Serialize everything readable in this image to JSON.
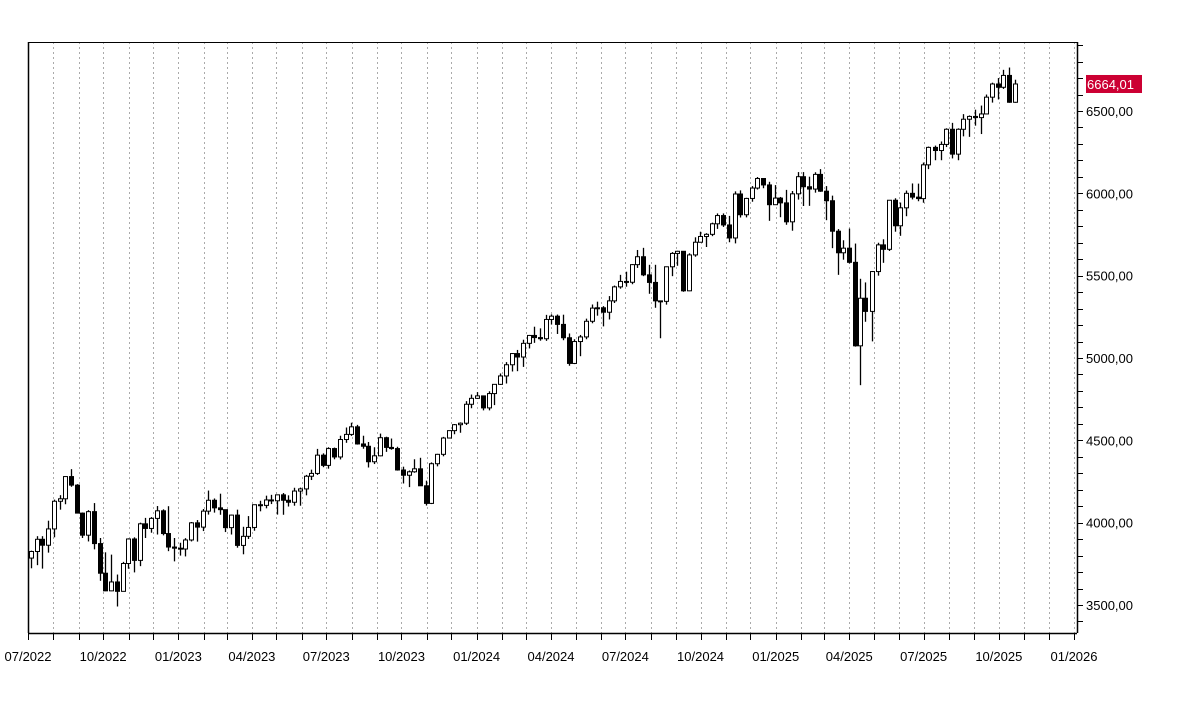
{
  "chart_data": {
    "type": "candlestick",
    "title": "",
    "xlabel": "",
    "ylabel": "",
    "x_range": [
      "2022-07-01",
      "2026-01-01"
    ],
    "ylim": [
      3330,
      6919
    ],
    "x_ticks": [
      "07/2022",
      "10/2022",
      "01/2023",
      "04/2023",
      "07/2023",
      "10/2023",
      "01/2024",
      "04/2024",
      "07/2024",
      "10/2024",
      "01/2025",
      "04/2025",
      "07/2025",
      "10/2025",
      "01/2026"
    ],
    "x_tick_dates": [
      "2022-07-01",
      "2022-10-01",
      "2023-01-01",
      "2023-04-01",
      "2023-07-01",
      "2023-10-01",
      "2024-01-01",
      "2024-04-01",
      "2024-07-01",
      "2024-10-01",
      "2025-01-01",
      "2025-04-01",
      "2025-07-01",
      "2025-10-01",
      "2026-01-01"
    ],
    "y_ticks": [
      3500,
      4000,
      4500,
      5000,
      5500,
      6000,
      6500
    ],
    "y_tick_labels": [
      "3500,00",
      "4000,00",
      "4500,00",
      "5000,00",
      "5500,00",
      "6000,00",
      "6500,00"
    ],
    "y_minor_step": 100,
    "grid": {
      "vertical": "monthly dotted",
      "horizontal": false
    },
    "last_price": {
      "label": "6664,01",
      "value": 6664.01,
      "color": "#cc0033"
    },
    "colors": {
      "up": "#ffffff",
      "down": "#000000",
      "outline": "#000000"
    },
    "candle_fields": [
      "date",
      "open",
      "high",
      "low",
      "close"
    ],
    "candles": [
      [
        "2022-07-01",
        3785,
        3830,
        3723,
        3825
      ],
      [
        "2022-07-08",
        3825,
        3918,
        3742,
        3899
      ],
      [
        "2022-07-15",
        3899,
        3918,
        3721,
        3863
      ],
      [
        "2022-07-22",
        3863,
        4012,
        3818,
        3962
      ],
      [
        "2022-07-29",
        3962,
        4140,
        3911,
        4130
      ],
      [
        "2022-08-05",
        4130,
        4167,
        4079,
        4145
      ],
      [
        "2022-08-12",
        4145,
        4280,
        4112,
        4280
      ],
      [
        "2022-08-19",
        4280,
        4325,
        4218,
        4228
      ],
      [
        "2022-08-26",
        4228,
        4234,
        4057,
        4058
      ],
      [
        "2022-09-02",
        4058,
        4062,
        3907,
        3924
      ],
      [
        "2022-09-09",
        3924,
        4076,
        3886,
        4067
      ],
      [
        "2022-09-16",
        4067,
        4119,
        3838,
        3873
      ],
      [
        "2022-09-23",
        3873,
        3907,
        3647,
        3693
      ],
      [
        "2022-09-30",
        3693,
        3820,
        3584,
        3586
      ],
      [
        "2022-10-07",
        3586,
        3806,
        3584,
        3640
      ],
      [
        "2022-10-14",
        3640,
        3685,
        3491,
        3583
      ],
      [
        "2022-10-21",
        3583,
        3762,
        3582,
        3752
      ],
      [
        "2022-10-28",
        3752,
        3905,
        3720,
        3901
      ],
      [
        "2022-11-04",
        3901,
        3911,
        3698,
        3771
      ],
      [
        "2022-11-11",
        3771,
        4000,
        3736,
        3993
      ],
      [
        "2022-11-18",
        3993,
        4029,
        3907,
        3965
      ],
      [
        "2022-11-25",
        3965,
        4034,
        3939,
        4026
      ],
      [
        "2022-12-02",
        4026,
        4101,
        3928,
        4072
      ],
      [
        "2022-12-09",
        4072,
        4081,
        3923,
        3934
      ],
      [
        "2022-12-16",
        3934,
        4100,
        3827,
        3852
      ],
      [
        "2022-12-23",
        3852,
        3907,
        3765,
        3845
      ],
      [
        "2022-12-30",
        3845,
        3878,
        3800,
        3840
      ],
      [
        "2023-01-06",
        3840,
        3906,
        3795,
        3895
      ],
      [
        "2023-01-13",
        3895,
        4004,
        3886,
        3999
      ],
      [
        "2023-01-20",
        3999,
        4016,
        3885,
        3973
      ],
      [
        "2023-01-27",
        3973,
        4083,
        3949,
        4070
      ],
      [
        "2023-02-03",
        4070,
        4195,
        4049,
        4136
      ],
      [
        "2023-02-10",
        4136,
        4147,
        4061,
        4090
      ],
      [
        "2023-02-17",
        4090,
        4176,
        4048,
        4079
      ],
      [
        "2023-02-24",
        4079,
        4080,
        3943,
        3970
      ],
      [
        "2023-03-03",
        3970,
        4049,
        3928,
        4046
      ],
      [
        "2023-03-10",
        4046,
        4079,
        3848,
        3862
      ],
      [
        "2023-03-17",
        3862,
        3975,
        3808,
        3917
      ],
      [
        "2023-03-24",
        3917,
        4040,
        3901,
        3971
      ],
      [
        "2023-03-31",
        3971,
        4110,
        3951,
        4109
      ],
      [
        "2023-04-07",
        4109,
        4133,
        4069,
        4105
      ],
      [
        "2023-04-14",
        4105,
        4164,
        4087,
        4138
      ],
      [
        "2023-04-21",
        4138,
        4169,
        4113,
        4133
      ],
      [
        "2023-04-28",
        4133,
        4170,
        4049,
        4169
      ],
      [
        "2023-05-05",
        4169,
        4180,
        4048,
        4136
      ],
      [
        "2023-05-12",
        4136,
        4166,
        4098,
        4124
      ],
      [
        "2023-05-19",
        4124,
        4212,
        4103,
        4192
      ],
      [
        "2023-05-26",
        4192,
        4213,
        4103,
        4205
      ],
      [
        "2023-06-02",
        4205,
        4290,
        4166,
        4282
      ],
      [
        "2023-06-09",
        4282,
        4322,
        4259,
        4299
      ],
      [
        "2023-06-16",
        4299,
        4448,
        4290,
        4410
      ],
      [
        "2023-06-23",
        4410,
        4421,
        4337,
        4348
      ],
      [
        "2023-06-30",
        4348,
        4458,
        4328,
        4450
      ],
      [
        "2023-07-07",
        4450,
        4456,
        4385,
        4399
      ],
      [
        "2023-07-14",
        4399,
        4528,
        4384,
        4505
      ],
      [
        "2023-07-21",
        4505,
        4578,
        4485,
        4536
      ],
      [
        "2023-07-28",
        4536,
        4607,
        4527,
        4582
      ],
      [
        "2023-08-04",
        4582,
        4594,
        4474,
        4478
      ],
      [
        "2023-08-11",
        4478,
        4528,
        4449,
        4464
      ],
      [
        "2023-08-18",
        4464,
        4490,
        4335,
        4370
      ],
      [
        "2023-08-25",
        4370,
        4458,
        4356,
        4406
      ],
      [
        "2023-09-01",
        4406,
        4541,
        4403,
        4516
      ],
      [
        "2023-09-08",
        4516,
        4522,
        4430,
        4457
      ],
      [
        "2023-09-15",
        4457,
        4511,
        4443,
        4450
      ],
      [
        "2023-09-22",
        4450,
        4461,
        4316,
        4320
      ],
      [
        "2023-09-29",
        4320,
        4340,
        4238,
        4288
      ],
      [
        "2023-10-06",
        4288,
        4317,
        4216,
        4309
      ],
      [
        "2023-10-13",
        4309,
        4385,
        4303,
        4327
      ],
      [
        "2023-10-20",
        4327,
        4394,
        4223,
        4224
      ],
      [
        "2023-10-27",
        4224,
        4255,
        4104,
        4117
      ],
      [
        "2023-11-03",
        4117,
        4366,
        4113,
        4358
      ],
      [
        "2023-11-10",
        4358,
        4418,
        4342,
        4415
      ],
      [
        "2023-11-17",
        4415,
        4521,
        4403,
        4514
      ],
      [
        "2023-11-24",
        4514,
        4560,
        4511,
        4559
      ],
      [
        "2023-12-01",
        4559,
        4599,
        4537,
        4595
      ],
      [
        "2023-12-08",
        4595,
        4609,
        4546,
        4604
      ],
      [
        "2023-12-15",
        4604,
        4738,
        4593,
        4719
      ],
      [
        "2023-12-22",
        4719,
        4778,
        4695,
        4755
      ],
      [
        "2023-12-29",
        4755,
        4793,
        4751,
        4770
      ],
      [
        "2024-01-05",
        4770,
        4772,
        4682,
        4697
      ],
      [
        "2024-01-12",
        4697,
        4798,
        4682,
        4784
      ],
      [
        "2024-01-19",
        4784,
        4842,
        4714,
        4840
      ],
      [
        "2024-01-26",
        4840,
        4906,
        4837,
        4891
      ],
      [
        "2024-02-02",
        4891,
        4975,
        4845,
        4959
      ],
      [
        "2024-02-09",
        4959,
        5030,
        4918,
        5027
      ],
      [
        "2024-02-16",
        5027,
        5049,
        4920,
        5006
      ],
      [
        "2024-02-23",
        5006,
        5111,
        4946,
        5089
      ],
      [
        "2024-03-01",
        5089,
        5140,
        5058,
        5137
      ],
      [
        "2024-03-08",
        5137,
        5190,
        5092,
        5124
      ],
      [
        "2024-03-15",
        5124,
        5180,
        5105,
        5117
      ],
      [
        "2024-03-22",
        5117,
        5262,
        5104,
        5234
      ],
      [
        "2024-03-28",
        5234,
        5265,
        5203,
        5254
      ],
      [
        "2024-04-05",
        5254,
        5264,
        5146,
        5204
      ],
      [
        "2024-04-12",
        5204,
        5263,
        5108,
        5123
      ],
      [
        "2024-04-19",
        5123,
        5149,
        4953,
        4967
      ],
      [
        "2024-04-26",
        4967,
        5114,
        4963,
        5100
      ],
      [
        "2024-05-03",
        5100,
        5140,
        5011,
        5128
      ],
      [
        "2024-05-10",
        5128,
        5239,
        5114,
        5223
      ],
      [
        "2024-05-17",
        5223,
        5325,
        5211,
        5303
      ],
      [
        "2024-05-24",
        5303,
        5342,
        5257,
        5305
      ],
      [
        "2024-05-31",
        5305,
        5315,
        5192,
        5278
      ],
      [
        "2024-06-07",
        5278,
        5376,
        5234,
        5347
      ],
      [
        "2024-06-14",
        5347,
        5440,
        5334,
        5432
      ],
      [
        "2024-06-21",
        5432,
        5505,
        5421,
        5465
      ],
      [
        "2024-06-28",
        5465,
        5524,
        5433,
        5460
      ],
      [
        "2024-07-05",
        5460,
        5570,
        5448,
        5567
      ],
      [
        "2024-07-12",
        5567,
        5656,
        5547,
        5615
      ],
      [
        "2024-07-19",
        5615,
        5669,
        5497,
        5505
      ],
      [
        "2024-07-26",
        5505,
        5566,
        5390,
        5459
      ],
      [
        "2024-08-02",
        5459,
        5566,
        5305,
        5347
      ],
      [
        "2024-08-09",
        5347,
        5349,
        5120,
        5344
      ],
      [
        "2024-08-16",
        5344,
        5556,
        5324,
        5554
      ],
      [
        "2024-08-23",
        5554,
        5643,
        5497,
        5635
      ],
      [
        "2024-08-30",
        5635,
        5651,
        5560,
        5648
      ],
      [
        "2024-09-06",
        5648,
        5650,
        5402,
        5408
      ],
      [
        "2024-09-13",
        5408,
        5636,
        5406,
        5626
      ],
      [
        "2024-09-20",
        5626,
        5733,
        5615,
        5703
      ],
      [
        "2024-09-27",
        5703,
        5767,
        5703,
        5738
      ],
      [
        "2024-10-04",
        5738,
        5758,
        5674,
        5751
      ],
      [
        "2024-10-11",
        5751,
        5822,
        5740,
        5815
      ],
      [
        "2024-10-18",
        5815,
        5878,
        5784,
        5865
      ],
      [
        "2024-10-25",
        5865,
        5878,
        5796,
        5808
      ],
      [
        "2024-11-01",
        5808,
        5863,
        5703,
        5729
      ],
      [
        "2024-11-08",
        5729,
        6012,
        5696,
        5996
      ],
      [
        "2024-11-15",
        5996,
        6018,
        5853,
        5870
      ],
      [
        "2024-11-22",
        5870,
        5973,
        5854,
        5969
      ],
      [
        "2024-11-29",
        5969,
        6044,
        5949,
        6032
      ],
      [
        "2024-12-06",
        6032,
        6099,
        6023,
        6090
      ],
      [
        "2024-12-13",
        6090,
        6092,
        6031,
        6051
      ],
      [
        "2024-12-20",
        6051,
        6070,
        5833,
        5931
      ],
      [
        "2024-12-27",
        5931,
        6050,
        5930,
        5971
      ],
      [
        "2025-01-03",
        5971,
        5978,
        5855,
        5942
      ],
      [
        "2025-01-10",
        5942,
        6021,
        5809,
        5827
      ],
      [
        "2025-01-17",
        5827,
        6014,
        5773,
        5997
      ],
      [
        "2025-01-24",
        5997,
        6129,
        5962,
        6101
      ],
      [
        "2025-01-31",
        6101,
        6129,
        5923,
        6040
      ],
      [
        "2025-02-07",
        6040,
        6101,
        5924,
        6026
      ],
      [
        "2025-02-14",
        6026,
        6128,
        6004,
        6115
      ],
      [
        "2025-02-21",
        6115,
        6147,
        6009,
        6013
      ],
      [
        "2025-02-28",
        6013,
        6044,
        5837,
        5955
      ],
      [
        "2025-03-07",
        5955,
        5986,
        5667,
        5770
      ],
      [
        "2025-03-14",
        5770,
        5783,
        5505,
        5639
      ],
      [
        "2025-03-21",
        5639,
        5715,
        5597,
        5667
      ],
      [
        "2025-03-28",
        5667,
        5786,
        5574,
        5581
      ],
      [
        "2025-04-04",
        5581,
        5695,
        5069,
        5074
      ],
      [
        "2025-04-11",
        5074,
        5481,
        4835,
        5363
      ],
      [
        "2025-04-17",
        5363,
        5459,
        5220,
        5283
      ],
      [
        "2025-04-25",
        5283,
        5528,
        5101,
        5525
      ],
      [
        "2025-05-02",
        5525,
        5700,
        5500,
        5687
      ],
      [
        "2025-05-09",
        5687,
        5721,
        5578,
        5660
      ],
      [
        "2025-05-16",
        5660,
        5959,
        5650,
        5958
      ],
      [
        "2025-05-23",
        5958,
        5970,
        5767,
        5803
      ],
      [
        "2025-05-30",
        5803,
        5944,
        5742,
        5912
      ],
      [
        "2025-06-06",
        5912,
        6017,
        5861,
        6000
      ],
      [
        "2025-06-13",
        6000,
        6060,
        5963,
        5977
      ],
      [
        "2025-06-20",
        5977,
        6059,
        5952,
        5968
      ],
      [
        "2025-06-27",
        5968,
        6187,
        5943,
        6173
      ],
      [
        "2025-07-03",
        6173,
        6284,
        6147,
        6279
      ],
      [
        "2025-07-11",
        6279,
        6290,
        6201,
        6260
      ],
      [
        "2025-07-18",
        6260,
        6315,
        6201,
        6297
      ],
      [
        "2025-07-25",
        6297,
        6395,
        6281,
        6389
      ],
      [
        "2025-08-01",
        6389,
        6428,
        6212,
        6238
      ],
      [
        "2025-08-08",
        6238,
        6395,
        6201,
        6389
      ],
      [
        "2025-08-15",
        6389,
        6481,
        6346,
        6450
      ],
      [
        "2025-08-22",
        6450,
        6473,
        6343,
        6467
      ],
      [
        "2025-08-29",
        6467,
        6508,
        6411,
        6460
      ],
      [
        "2025-09-05",
        6460,
        6533,
        6360,
        6482
      ],
      [
        "2025-09-12",
        6482,
        6600,
        6481,
        6584
      ],
      [
        "2025-09-19",
        6584,
        6672,
        6551,
        6664
      ],
      [
        "2025-09-26",
        6664,
        6700,
        6570,
        6644
      ],
      [
        "2025-10-03",
        6644,
        6750,
        6634,
        6716
      ],
      [
        "2025-10-10",
        6716,
        6764,
        6550,
        6553
      ],
      [
        "2025-10-17",
        6553,
        6690,
        6550,
        6664.01
      ]
    ]
  }
}
